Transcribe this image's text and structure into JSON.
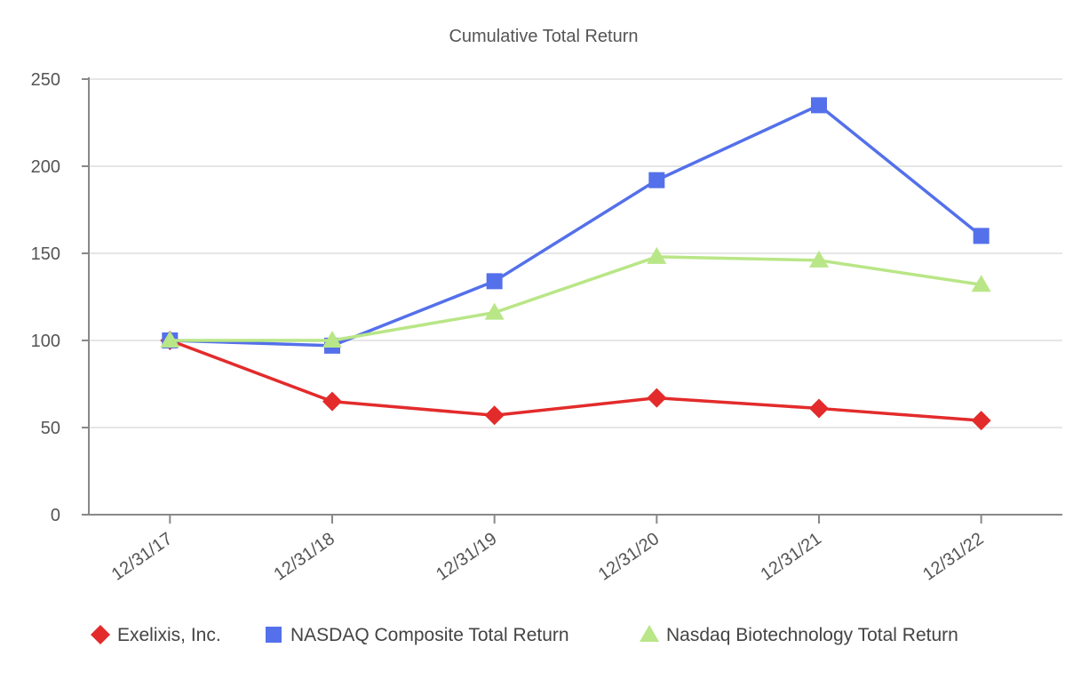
{
  "chart_data": {
    "type": "line",
    "title": "Cumulative Total  Return",
    "xlabel": "",
    "ylabel": "",
    "categories": [
      "12/31/17",
      "12/31/18",
      "12/31/19",
      "12/31/20",
      "12/31/21",
      "12/31/22"
    ],
    "ylim": [
      0,
      250
    ],
    "yticks": [
      0,
      50,
      100,
      150,
      200,
      250
    ],
    "grid": true,
    "legend_position": "bottom",
    "series": [
      {
        "name": "Exelixis, Inc.",
        "color": "#e32b2b",
        "marker": "diamond",
        "values": [
          100,
          65,
          57,
          67,
          61,
          54
        ]
      },
      {
        "name": "NASDAQ Composite Total Return",
        "color": "#5470ea",
        "marker": "square",
        "values": [
          100,
          97,
          134,
          192,
          235,
          160
        ]
      },
      {
        "name": "Nasdaq Biotechnology Total Return",
        "color": "#b9e687",
        "marker": "triangle",
        "values": [
          100,
          100,
          116,
          148,
          146,
          132
        ]
      }
    ]
  }
}
